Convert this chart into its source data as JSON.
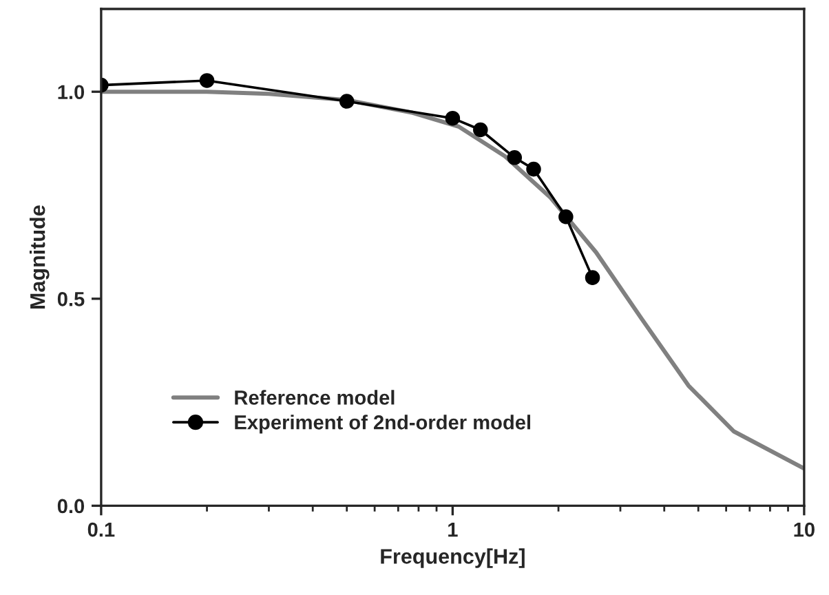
{
  "chart_data": {
    "type": "line",
    "xlabel": "Frequency[Hz]",
    "ylabel": "Magnitude",
    "log": "x",
    "xlim": [
      0.1,
      10
    ],
    "ylim": [
      0,
      1.2
    ],
    "xticks": [
      0.1,
      1,
      10
    ],
    "yticks": [
      {
        "value": 0,
        "label": "0.0"
      },
      {
        "value": 0.5,
        "label": "0.5"
      },
      {
        "value": 1,
        "label": "1.0"
      }
    ],
    "grid": false,
    "legend": "lower left",
    "series": [
      {
        "name": "Reference model",
        "color": "#808080",
        "marker": "none",
        "x": [
          0.1,
          0.2,
          0.3,
          0.5,
          0.77,
          1.04,
          1.41,
          1.9,
          2.56,
          3.46,
          4.69,
          6.3,
          10
        ],
        "values": [
          1.0,
          1.0,
          0.995,
          0.98,
          0.949,
          0.916,
          0.844,
          0.744,
          0.612,
          0.45,
          0.29,
          0.18,
          0.09
        ]
      },
      {
        "name": "Experiment of 2nd-order model",
        "color": "#000000",
        "marker": "circle",
        "x": [
          0.1,
          0.2,
          0.5,
          1.0,
          1.2,
          1.5,
          1.7,
          2.1,
          2.5
        ],
        "values": [
          1.016,
          1.027,
          0.977,
          0.936,
          0.908,
          0.841,
          0.813,
          0.698,
          0.551
        ]
      }
    ]
  }
}
